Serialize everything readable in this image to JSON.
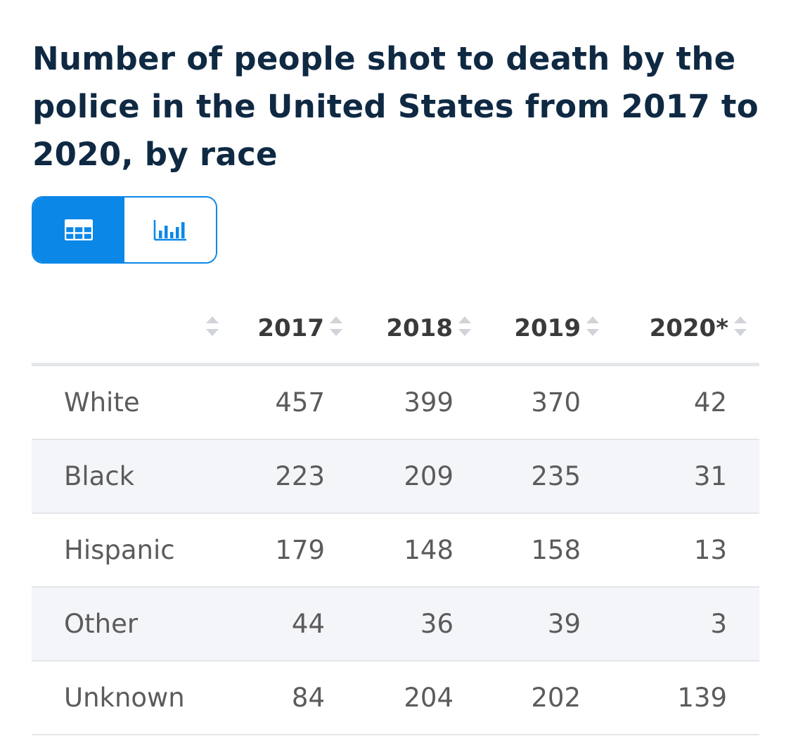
{
  "chart_data": {
    "type": "table",
    "title": "Number of people shot to death by the police in the United States from 2017 to 2020, by race",
    "columns": [
      "",
      "2017",
      "2018",
      "2019",
      "2020*"
    ],
    "rows": [
      {
        "label": "White",
        "values": [
          "457",
          "399",
          "370",
          "42"
        ]
      },
      {
        "label": "Black",
        "values": [
          "223",
          "209",
          "235",
          "31"
        ]
      },
      {
        "label": "Hispanic",
        "values": [
          "179",
          "148",
          "158",
          "13"
        ]
      },
      {
        "label": "Other",
        "values": [
          "44",
          "36",
          "39",
          "3"
        ]
      },
      {
        "label": "Unknown",
        "values": [
          "84",
          "204",
          "202",
          "139"
        ]
      }
    ]
  },
  "view_toggle": {
    "active": "table",
    "options": [
      {
        "icon": "table-icon"
      },
      {
        "icon": "bar-chart-icon"
      }
    ]
  },
  "colors": {
    "accent": "#0b87e8",
    "title": "#0f2943",
    "row_alt": "#f4f5f9"
  }
}
